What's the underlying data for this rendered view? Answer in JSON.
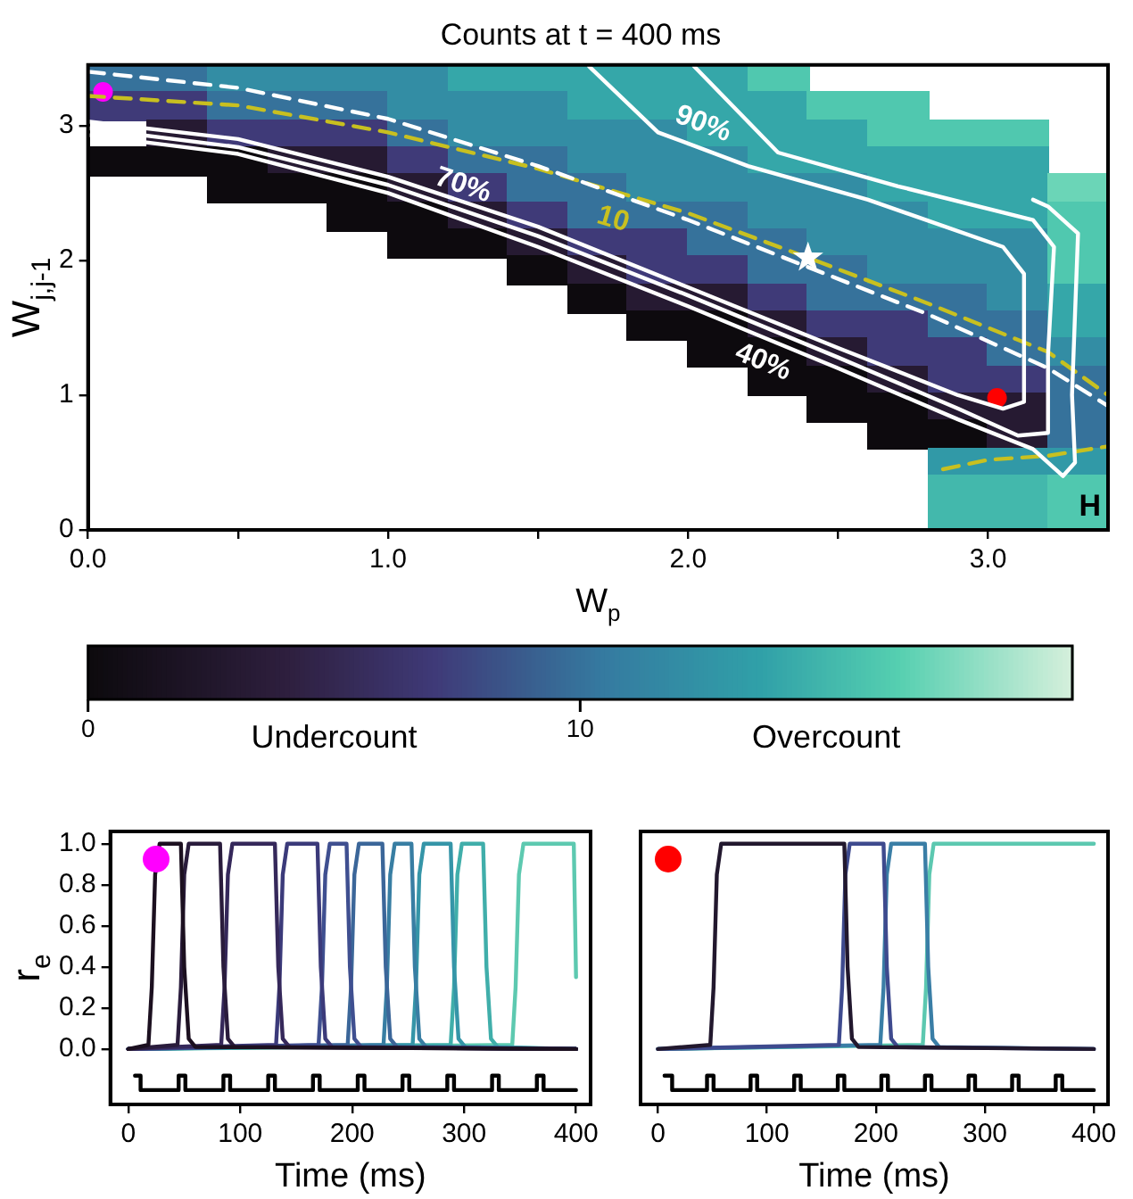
{
  "chart_data": [
    {
      "type": "heatmap",
      "title": "Counts at t = 400 ms",
      "xlabel": "W$_{p}$",
      "ylabel": "W$_{j,j-1}$",
      "cells": [
        [
          10,
          10,
          12,
          12,
          12,
          12,
          14,
          14,
          14,
          14,
          14,
          16,
          null,
          null,
          null,
          null,
          null
        ],
        [
          7,
          7,
          10,
          10,
          10,
          12,
          12,
          12,
          14,
          14,
          14,
          14,
          16,
          16,
          null,
          null,
          null
        ],
        [
          null,
          3,
          7,
          7,
          7,
          10,
          12,
          12,
          12,
          12,
          14,
          14,
          14,
          16,
          16,
          16,
          null
        ],
        [
          0,
          0,
          0,
          3,
          3,
          7,
          10,
          10,
          12,
          12,
          12,
          14,
          14,
          14,
          14,
          14,
          null
        ],
        [
          null,
          null,
          0,
          0,
          0,
          3,
          7,
          10,
          10,
          12,
          12,
          12,
          12,
          14,
          14,
          14,
          17
        ],
        [
          null,
          null,
          null,
          null,
          0,
          0,
          3,
          7,
          10,
          10,
          10,
          12,
          12,
          12,
          14,
          14,
          16
        ],
        [
          null,
          null,
          null,
          null,
          null,
          0,
          0,
          3,
          7,
          7,
          10,
          10,
          12,
          12,
          12,
          12,
          16
        ],
        [
          null,
          null,
          null,
          null,
          null,
          null,
          null,
          0,
          3,
          7,
          7,
          10,
          10,
          12,
          12,
          12,
          16
        ],
        [
          null,
          null,
          null,
          null,
          null,
          null,
          null,
          null,
          0,
          3,
          3,
          7,
          10,
          10,
          10,
          12,
          14
        ],
        [
          null,
          null,
          null,
          null,
          null,
          null,
          null,
          null,
          null,
          0,
          0,
          3,
          7,
          7,
          10,
          10,
          14
        ],
        [
          null,
          null,
          null,
          null,
          null,
          null,
          null,
          null,
          null,
          null,
          0,
          0,
          3,
          7,
          7,
          10,
          12
        ],
        [
          null,
          null,
          null,
          null,
          null,
          null,
          null,
          null,
          null,
          null,
          null,
          0,
          0,
          3,
          7,
          7,
          10
        ],
        [
          null,
          null,
          null,
          null,
          null,
          null,
          null,
          null,
          null,
          null,
          null,
          null,
          0,
          0,
          3,
          3,
          10
        ],
        [
          null,
          null,
          null,
          null,
          null,
          null,
          null,
          null,
          null,
          null,
          null,
          null,
          null,
          0,
          0,
          3,
          10
        ],
        [
          null,
          null,
          null,
          null,
          null,
          null,
          null,
          null,
          null,
          null,
          null,
          null,
          null,
          null,
          13,
          13,
          13
        ],
        [
          null,
          null,
          null,
          null,
          null,
          null,
          null,
          null,
          null,
          null,
          null,
          null,
          null,
          null,
          15,
          15,
          16
        ],
        [
          null,
          null,
          null,
          null,
          null,
          null,
          null,
          null,
          null,
          null,
          null,
          null,
          null,
          null,
          15,
          15,
          16
        ]
      ],
      "clim": [
        0,
        20
      ],
      "cticks": [
        0,
        10
      ],
      "xlim": [
        0,
        3.4
      ],
      "ylim": [
        0,
        3.45
      ],
      "xticks": [
        {
          "value": 0,
          "label": "0.0"
        },
        {
          "value": 0.5,
          "label": null
        },
        {
          "value": 1,
          "label": "1.0"
        },
        {
          "value": 1.5,
          "label": null
        },
        {
          "value": 2,
          "label": "2.0"
        },
        {
          "value": 2.5,
          "label": null
        },
        {
          "value": 3,
          "label": "3.0"
        }
      ],
      "yticks": [
        0,
        1,
        2,
        3
      ],
      "series": [
        {
          "type": "line",
          "name": "90%",
          "color": "#ffffff",
          "x": [
            0,
            0.5,
            1.0,
            1.5,
            2.0,
            2.5,
            2.9,
            3.05,
            3.12,
            3.12,
            3.05,
            2.6,
            2.2,
            1.9,
            1.67
          ],
          "values": [
            3.03,
            2.9,
            2.62,
            2.25,
            1.8,
            1.35,
            1.0,
            0.9,
            0.95,
            1.9,
            2.1,
            2.45,
            2.7,
            2.95,
            3.44
          ]
        },
        {
          "type": "line",
          "name": "70%",
          "color": "#ffffff",
          "x": [
            0,
            0.5,
            1.0,
            1.5,
            2.0,
            2.5,
            2.9,
            3.1,
            3.2,
            3.2,
            3.22,
            3.15,
            2.7,
            2.3,
            2.02
          ],
          "values": [
            2.98,
            2.84,
            2.56,
            2.18,
            1.74,
            1.28,
            0.9,
            0.7,
            0.72,
            1.3,
            2.1,
            2.3,
            2.55,
            2.8,
            3.44
          ]
        },
        {
          "type": "line",
          "name": "40%",
          "color": "#ffffff",
          "x": [
            0,
            0.5,
            1.0,
            1.5,
            2.0,
            2.5,
            2.9,
            3.15,
            3.25,
            3.29,
            3.28,
            3.3,
            3.2,
            3.15
          ],
          "values": [
            2.93,
            2.79,
            2.5,
            2.1,
            1.66,
            1.2,
            0.82,
            0.6,
            0.4,
            0.5,
            1.0,
            2.2,
            2.4,
            2.45
          ]
        },
        {
          "type": "line",
          "color": "#ffffff",
          "line_style": "dashed",
          "x": [
            0,
            0.5,
            1.0,
            1.5,
            2.0,
            2.4,
            2.8,
            3.2,
            3.4
          ],
          "values": [
            3.4,
            3.28,
            3.05,
            2.7,
            2.3,
            1.95,
            1.6,
            1.2,
            0.92
          ]
        },
        {
          "type": "line",
          "name": "10",
          "color": "#c8c020",
          "line_style": "dashed",
          "x": [
            0,
            0.5,
            1.0,
            1.5,
            2.0,
            2.4,
            2.8,
            3.2,
            3.4
          ],
          "values": [
            3.22,
            3.15,
            2.95,
            2.68,
            2.35,
            2.02,
            1.68,
            1.32,
            1.0
          ]
        },
        {
          "type": "line",
          "color": "#c8c020",
          "line_style": "dashed",
          "x": [
            2.85,
            3.0,
            3.2,
            3.4
          ],
          "values": [
            0.45,
            0.52,
            0.55,
            0.62
          ]
        },
        {
          "type": "scatter",
          "color": "#ff00ff",
          "marker": "circle",
          "x": [
            0.05
          ],
          "values": [
            3.25
          ]
        },
        {
          "type": "scatter",
          "color": "#ffffff",
          "marker": "star",
          "x": [
            2.4
          ],
          "values": [
            2.02
          ]
        },
        {
          "type": "scatter",
          "color": "#ff0000",
          "marker": "circle",
          "x": [
            3.03
          ],
          "values": [
            0.98
          ]
        }
      ],
      "annotations": [
        "Undercount",
        "Overcount",
        "H"
      ]
    },
    {
      "type": "line",
      "ylabel": "r$_{e}$",
      "xlabel": "Time (ms)",
      "xlim": [
        -16,
        413
      ],
      "ylim": [
        -0.27,
        1.06
      ],
      "xticks": [
        0,
        100,
        200,
        300,
        400
      ],
      "yticks": [
        {
          "value": 0,
          "label": "0.0"
        },
        {
          "value": 0.2,
          "label": "0.2"
        },
        {
          "value": 0.4,
          "label": "0.4"
        },
        {
          "value": 0.6,
          "label": "0.6"
        },
        {
          "value": 0.8,
          "label": "0.8"
        },
        {
          "value": 1,
          "label": "1.0"
        }
      ],
      "series": [
        {
          "color": "#1c1020",
          "x": [
            0,
            18,
            21,
            24,
            28,
            47,
            50,
            54,
            60,
            400
          ],
          "values": [
            0,
            0.02,
            0.3,
            0.85,
            1,
            1,
            0.4,
            0.05,
            0.01,
            0
          ]
        },
        {
          "color": "#2a1c3c",
          "x": [
            0,
            44,
            47,
            50,
            54,
            82,
            85,
            89,
            95,
            400
          ],
          "values": [
            0,
            0.02,
            0.3,
            0.85,
            1,
            1,
            0.4,
            0.05,
            0.01,
            0
          ]
        },
        {
          "color": "#35285a",
          "x": [
            0,
            83,
            86,
            89,
            93,
            131,
            134,
            138,
            144,
            400
          ],
          "values": [
            0,
            0.02,
            0.3,
            0.85,
            1,
            1,
            0.4,
            0.05,
            0.01,
            0
          ]
        },
        {
          "color": "#3b3a7a",
          "x": [
            0,
            132,
            135,
            138,
            142,
            169,
            172,
            176,
            182,
            400
          ],
          "values": [
            0,
            0.02,
            0.3,
            0.85,
            1,
            1,
            0.4,
            0.05,
            0.01,
            0
          ]
        },
        {
          "color": "#3f4f90",
          "x": [
            0,
            170,
            173,
            176,
            180,
            195,
            198,
            202,
            208,
            400
          ],
          "values": [
            0,
            0.02,
            0.3,
            0.85,
            1,
            1,
            0.4,
            0.05,
            0.01,
            0
          ]
        },
        {
          "color": "#3b6699",
          "x": [
            0,
            196,
            199,
            202,
            206,
            227,
            230,
            234,
            240,
            400
          ],
          "values": [
            0,
            0.02,
            0.3,
            0.85,
            1,
            1,
            0.4,
            0.05,
            0.01,
            0
          ]
        },
        {
          "color": "#387ea3",
          "x": [
            0,
            228,
            231,
            234,
            238,
            253,
            256,
            260,
            266,
            400
          ],
          "values": [
            0,
            0.02,
            0.3,
            0.85,
            1,
            1,
            0.4,
            0.05,
            0.01,
            0
          ]
        },
        {
          "color": "#3595a8",
          "x": [
            0,
            254,
            257,
            260,
            264,
            288,
            291,
            295,
            301,
            400
          ],
          "values": [
            0,
            0.02,
            0.3,
            0.85,
            1,
            1,
            0.4,
            0.05,
            0.01,
            0
          ]
        },
        {
          "color": "#40aeaa",
          "x": [
            0,
            288,
            291,
            294,
            298,
            317,
            320,
            324,
            330,
            400
          ],
          "values": [
            0,
            0.02,
            0.3,
            0.85,
            1,
            1,
            0.4,
            0.05,
            0.01,
            0
          ]
        },
        {
          "color": "#5dc9b0",
          "x": [
            0,
            343,
            346,
            349,
            353,
            398,
            400
          ],
          "values": [
            0,
            0.02,
            0.3,
            0.85,
            1,
            1,
            0.35
          ]
        },
        {
          "color": "#000000",
          "x": [
            6,
            11,
            11,
            45,
            45,
            51,
            51,
            85,
            85,
            91,
            91,
            125,
            125,
            131,
            131,
            165,
            165,
            171,
            171,
            205,
            205,
            211,
            211,
            245,
            245,
            251,
            251,
            285,
            285,
            291,
            291,
            325,
            325,
            331,
            331,
            365,
            365,
            371,
            371,
            400
          ],
          "values": [
            -0.13,
            -0.13,
            -0.2,
            -0.2,
            -0.13,
            -0.13,
            -0.2,
            -0.2,
            -0.13,
            -0.13,
            -0.2,
            -0.2,
            -0.13,
            -0.13,
            -0.2,
            -0.2,
            -0.13,
            -0.13,
            -0.2,
            -0.2,
            -0.13,
            -0.13,
            -0.2,
            -0.2,
            -0.13,
            -0.13,
            -0.2,
            -0.2,
            -0.13,
            -0.13,
            -0.2,
            -0.2,
            -0.13,
            -0.13,
            -0.2,
            -0.2,
            -0.13,
            -0.13,
            -0.2,
            -0.2
          ]
        }
      ]
    },
    {
      "type": "line",
      "xlabel": "Time (ms)",
      "xlim": [
        -16,
        413
      ],
      "ylim": [
        -0.27,
        1.06
      ],
      "tick_labels": "x",
      "xticks": [
        0,
        100,
        200,
        300,
        400
      ],
      "yticks": [
        0,
        0.2,
        0.4,
        0.6,
        0.8,
        1
      ],
      "series": [
        {
          "color": "#22182e",
          "x": [
            0,
            48,
            51,
            54,
            58,
            171,
            174,
            178,
            184,
            400
          ],
          "values": [
            0,
            0.02,
            0.3,
            0.85,
            1,
            1,
            0.4,
            0.05,
            0.01,
            0
          ]
        },
        {
          "color": "#3e4a8e",
          "x": [
            0,
            166,
            169,
            172,
            176,
            207,
            210,
            214,
            220,
            400
          ],
          "values": [
            0,
            0.02,
            0.3,
            0.85,
            1,
            1,
            0.4,
            0.05,
            0.01,
            0
          ]
        },
        {
          "color": "#3a7ea6",
          "x": [
            0,
            204,
            207,
            210,
            214,
            245,
            248,
            252,
            258,
            400
          ],
          "values": [
            0,
            0.02,
            0.3,
            0.85,
            1,
            1,
            0.4,
            0.05,
            0.01,
            0
          ]
        },
        {
          "color": "#5cc8b0",
          "x": [
            0,
            243,
            246,
            249,
            253,
            400
          ],
          "values": [
            0,
            0.02,
            0.3,
            0.85,
            1,
            1
          ]
        },
        {
          "color": "#000000",
          "x": [
            6,
            13,
            13,
            45,
            45,
            51,
            51,
            85,
            85,
            91,
            91,
            125,
            125,
            131,
            131,
            165,
            165,
            171,
            171,
            205,
            205,
            211,
            211,
            245,
            245,
            251,
            251,
            285,
            285,
            291,
            291,
            325,
            325,
            331,
            331,
            365,
            365,
            371,
            371,
            400
          ],
          "values": [
            -0.13,
            -0.13,
            -0.2,
            -0.2,
            -0.13,
            -0.13,
            -0.2,
            -0.2,
            -0.13,
            -0.13,
            -0.2,
            -0.2,
            -0.13,
            -0.13,
            -0.2,
            -0.2,
            -0.13,
            -0.13,
            -0.2,
            -0.2,
            -0.13,
            -0.13,
            -0.2,
            -0.2,
            -0.13,
            -0.13,
            -0.2,
            -0.2,
            -0.13,
            -0.13,
            -0.2,
            -0.2,
            -0.13,
            -0.13,
            -0.2,
            -0.2,
            -0.13,
            -0.13,
            -0.2,
            -0.2
          ]
        }
      ]
    }
  ]
}
